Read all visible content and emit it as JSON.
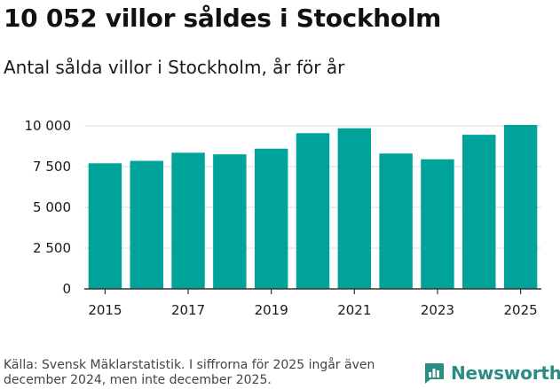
{
  "title": "10 052 villor såldes i Stockholm",
  "subtitle": "Antal sålda villor i Stockholm, år för år",
  "footer": {
    "source": "Källa: Svensk Mäklarstatistik. I siffrorna för 2025 ingår även december 2024, men inte december 2025.",
    "brand": "Newsworthy"
  },
  "colors": {
    "bar": "#00a39a",
    "brand": "#2b8c83",
    "grid": "#dcdcdc",
    "axis": "#333333"
  },
  "chart_data": {
    "type": "bar",
    "title": "10 052 villor såldes i Stockholm",
    "subtitle": "Antal sålda villor i Stockholm, år för år",
    "xlabel": "",
    "ylabel": "",
    "categories": [
      "2015",
      "2016",
      "2017",
      "2018",
      "2019",
      "2020",
      "2021",
      "2022",
      "2023",
      "2024",
      "2025"
    ],
    "values": [
      7700,
      7850,
      8350,
      8250,
      8600,
      9550,
      9850,
      8300,
      7950,
      9450,
      10052
    ],
    "ylim": [
      0,
      10000
    ],
    "yticks": [
      0,
      2500,
      5000,
      7500,
      10000
    ],
    "ytick_labels": [
      "0",
      "2 500",
      "5 000",
      "7 500",
      "10 000"
    ],
    "xtick_labels": [
      "2015",
      "2017",
      "2019",
      "2021",
      "2023",
      "2025"
    ],
    "grid": true,
    "legend": "none"
  }
}
